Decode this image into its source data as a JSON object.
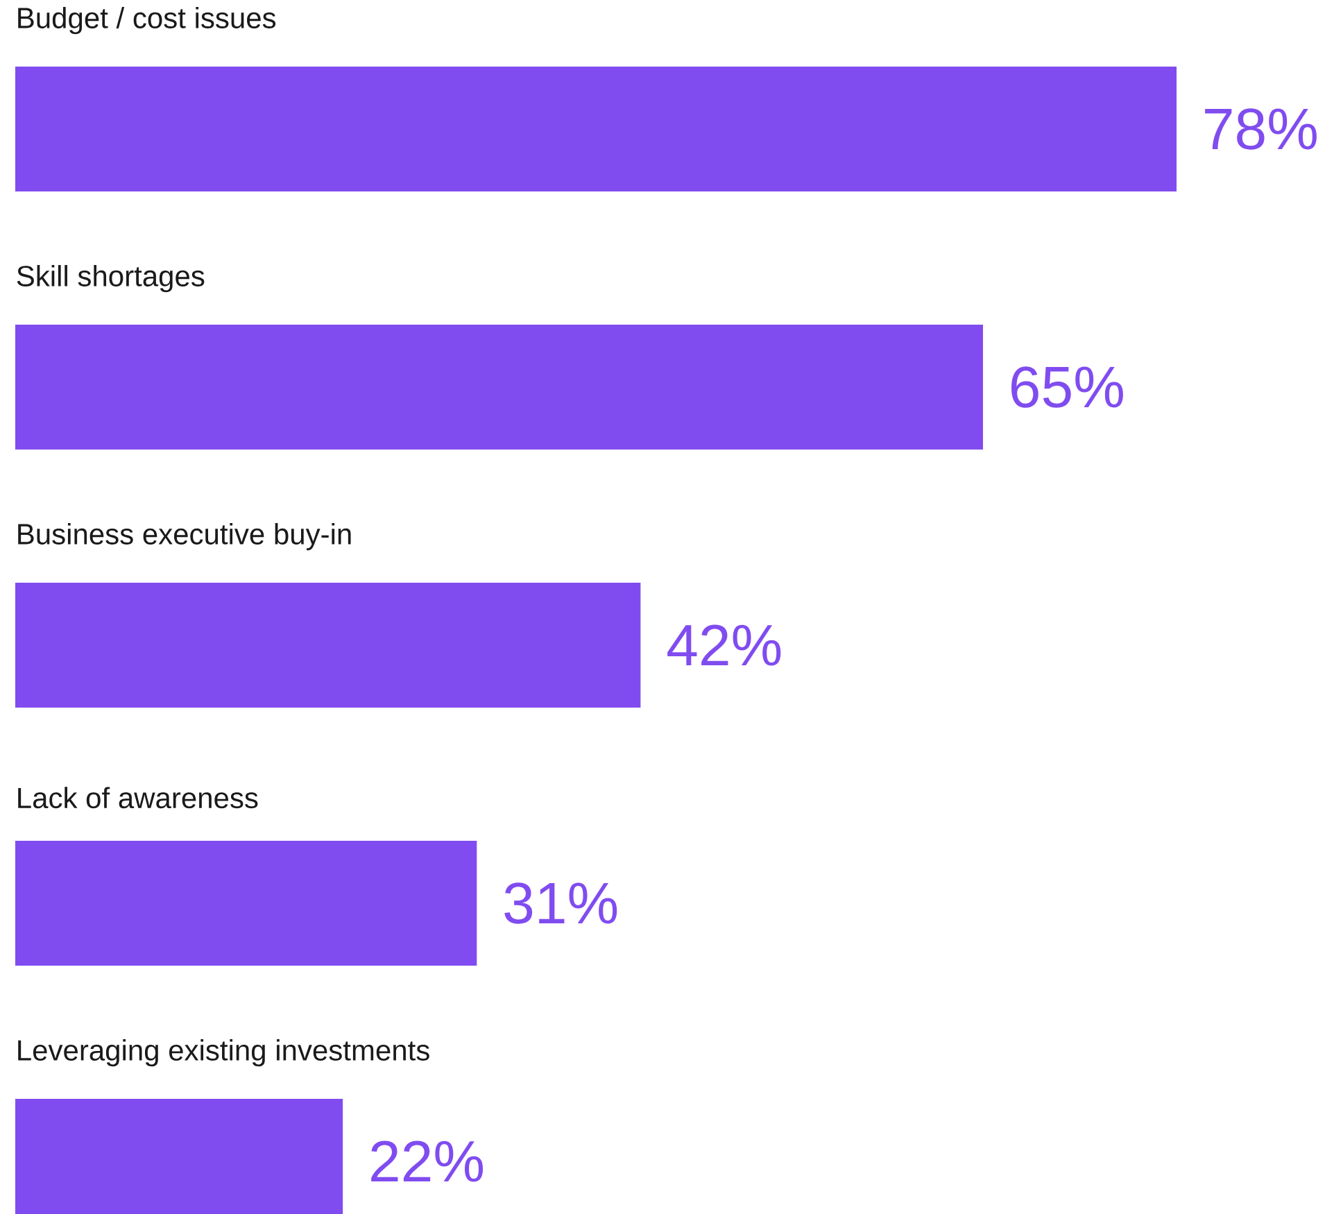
{
  "chart_data": {
    "type": "bar",
    "orientation": "horizontal",
    "categories": [
      "Budget / cost issues",
      "Skill shortages",
      "Business executive buy-in",
      "Lack of awareness",
      "Leveraging existing investments"
    ],
    "values": [
      78,
      65,
      42,
      31,
      22
    ],
    "value_labels": [
      "78%",
      "65%",
      "42%",
      "31%",
      "22%"
    ],
    "color": "#804cf0"
  }
}
